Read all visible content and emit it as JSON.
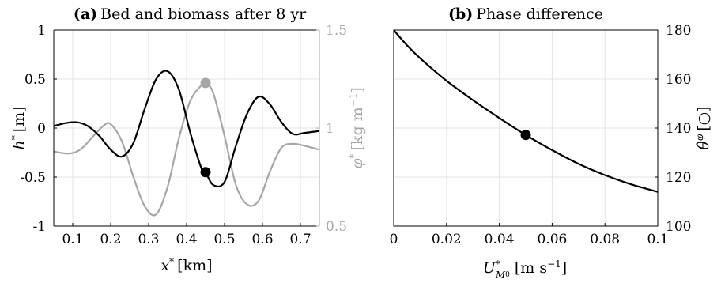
{
  "chart_data": [
    {
      "type": "line",
      "title_tag": "(a)",
      "title": "Bed and biomass after 8 yr",
      "xlabel": "x* [km]",
      "ylabel_left": "h* [m]",
      "ylabel_right": "φ* [kg m⁻¹]",
      "xlim": [
        0.05,
        0.75
      ],
      "ylim_left": [
        -1,
        1
      ],
      "ylim_right": [
        0.5,
        1.5
      ],
      "x_ticks": [
        "0.1",
        "0.2",
        "0.3",
        "0.4",
        "0.5",
        "0.6",
        "0.7"
      ],
      "y_ticks_left": [
        "-1",
        "-0.5",
        "0",
        "0.5",
        "1"
      ],
      "y_ticks_right": [
        "0.5",
        "1",
        "1.5"
      ],
      "grid": true,
      "series": [
        {
          "axis": "left",
          "color": "#000000",
          "x": [
            0.05,
            0.08,
            0.11,
            0.14,
            0.17,
            0.2,
            0.23,
            0.26,
            0.29,
            0.32,
            0.35,
            0.38,
            0.41,
            0.44,
            0.45,
            0.47,
            0.5,
            0.53,
            0.56,
            0.59,
            0.62,
            0.65,
            0.68,
            0.71,
            0.75
          ],
          "values": [
            0.02,
            0.05,
            0.06,
            0.02,
            -0.08,
            -0.22,
            -0.29,
            -0.15,
            0.2,
            0.5,
            0.58,
            0.39,
            -0.05,
            -0.42,
            -0.45,
            -0.58,
            -0.55,
            -0.18,
            0.15,
            0.32,
            0.24,
            0.06,
            -0.06,
            -0.05,
            -0.03
          ]
        },
        {
          "axis": "right",
          "color": "#a6a6a6",
          "x": [
            0.05,
            0.09,
            0.12,
            0.15,
            0.18,
            0.2,
            0.23,
            0.26,
            0.29,
            0.32,
            0.35,
            0.38,
            0.41,
            0.44,
            0.45,
            0.47,
            0.5,
            0.53,
            0.56,
            0.59,
            0.62,
            0.65,
            0.68,
            0.71,
            0.75
          ],
          "values": [
            0.88,
            0.87,
            0.89,
            0.95,
            1.01,
            1.02,
            0.93,
            0.75,
            0.6,
            0.56,
            0.7,
            0.95,
            1.14,
            1.22,
            1.23,
            1.18,
            0.96,
            0.71,
            0.61,
            0.63,
            0.78,
            0.9,
            0.92,
            0.91,
            0.89
          ]
        }
      ],
      "markers": [
        {
          "axis": "left",
          "x": 0.45,
          "y": -0.45,
          "color": "#000000"
        },
        {
          "axis": "right",
          "x": 0.45,
          "y": 1.23,
          "color": "#a6a6a6"
        }
      ]
    },
    {
      "type": "line",
      "title_tag": "(b)",
      "title": "Phase difference",
      "xlabel": "U*M₀ [m s⁻¹]",
      "ylabel": "θφ [○]",
      "xlim": [
        0,
        0.1
      ],
      "ylim": [
        100,
        180
      ],
      "x_ticks": [
        "0",
        "0.02",
        "0.04",
        "0.06",
        "0.08",
        "0.1"
      ],
      "y_ticks": [
        "100",
        "120",
        "140",
        "160",
        "180"
      ],
      "grid": true,
      "series": [
        {
          "color": "#000000",
          "x": [
            0,
            0.005,
            0.01,
            0.02,
            0.03,
            0.04,
            0.05,
            0.06,
            0.07,
            0.08,
            0.09,
            0.1
          ],
          "values": [
            180,
            173.8,
            168.5,
            159.3,
            151.4,
            144.1,
            137.2,
            131.0,
            125.4,
            120.8,
            117.0,
            114.0
          ]
        }
      ],
      "markers": [
        {
          "x": 0.05,
          "y": 137.2,
          "color": "#000000"
        }
      ]
    }
  ]
}
